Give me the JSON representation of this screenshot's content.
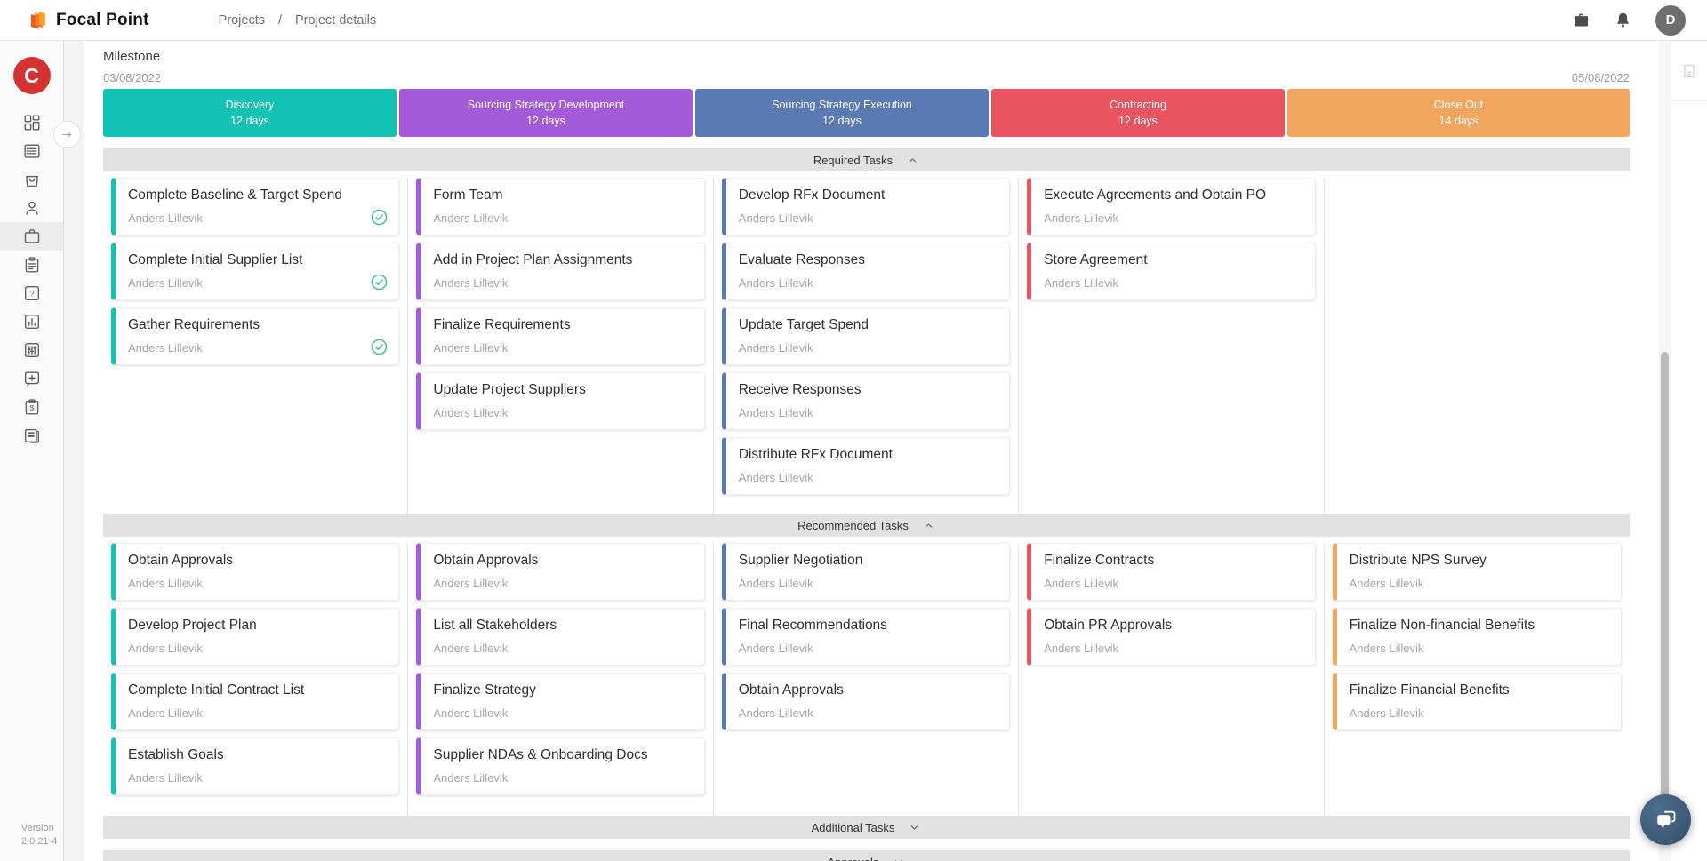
{
  "header": {
    "logo_text": "Focal Point",
    "breadcrumb": [
      "Projects",
      "Project details"
    ],
    "avatar_initial": "D"
  },
  "sidebar": {
    "logo_initial": "C",
    "items": [
      {
        "id": "dashboard",
        "icon": "dashboard-icon",
        "active": false
      },
      {
        "id": "task-list",
        "icon": "list-icon",
        "active": false
      },
      {
        "id": "sourcing",
        "icon": "shopping-bag-icon",
        "active": false
      },
      {
        "id": "contacts",
        "icon": "person-icon",
        "active": false
      },
      {
        "id": "projects",
        "icon": "briefcase-icon",
        "active": true
      },
      {
        "id": "notes",
        "icon": "clipboard-icon",
        "active": false
      },
      {
        "id": "help",
        "icon": "question-icon",
        "active": false
      },
      {
        "id": "analytics",
        "icon": "bar-chart-icon",
        "active": false
      },
      {
        "id": "filters",
        "icon": "sliders-icon",
        "active": false
      },
      {
        "id": "add-new",
        "icon": "add-square-icon",
        "active": false
      },
      {
        "id": "budget",
        "icon": "budget-clipboard-icon",
        "active": false
      },
      {
        "id": "documents",
        "icon": "documents-stack-icon",
        "active": false
      }
    ],
    "version_label": "Version",
    "version_value": "2.0.21-4"
  },
  "milestone": {
    "title": "Milestone",
    "start_date": "03/08/2022",
    "end_date": "05/08/2022",
    "phases": [
      {
        "name": "Discovery",
        "duration": "12 days",
        "days": 12,
        "color": "#12c3b3"
      },
      {
        "name": "Sourcing Strategy Development",
        "duration": "12 days",
        "days": 12,
        "color": "#a55bd9"
      },
      {
        "name": "Sourcing Strategy Execution",
        "duration": "12 days",
        "days": 12,
        "color": "#5b7ab4"
      },
      {
        "name": "Contracting",
        "duration": "12 days",
        "days": 12,
        "color": "#e95460"
      },
      {
        "name": "Close Out",
        "duration": "14 days",
        "days": 14,
        "color": "#f2a55e"
      }
    ]
  },
  "colors": {
    "check": "#4dbd8d"
  },
  "sections": [
    {
      "key": "required",
      "label": "Required Tasks",
      "expanded": true,
      "columns": [
        [
          {
            "title": "Complete Baseline & Target Spend",
            "assignee": "Anders Lillevik",
            "done": true
          },
          {
            "title": "Complete Initial Supplier List",
            "assignee": "Anders Lillevik",
            "done": true
          },
          {
            "title": "Gather Requirements",
            "assignee": "Anders Lillevik",
            "done": true
          }
        ],
        [
          {
            "title": "Form Team",
            "assignee": "Anders Lillevik",
            "done": false
          },
          {
            "title": "Add in Project Plan Assignments",
            "assignee": "Anders Lillevik",
            "done": false
          },
          {
            "title": "Finalize Requirements",
            "assignee": "Anders Lillevik",
            "done": false
          },
          {
            "title": "Update Project Suppliers",
            "assignee": "Anders Lillevik",
            "done": false
          }
        ],
        [
          {
            "title": "Develop RFx Document",
            "assignee": "Anders Lillevik",
            "done": false
          },
          {
            "title": "Evaluate Responses",
            "assignee": "Anders Lillevik",
            "done": false
          },
          {
            "title": "Update Target Spend",
            "assignee": "Anders Lillevik",
            "done": false
          },
          {
            "title": "Receive Responses",
            "assignee": "Anders Lillevik",
            "done": false
          },
          {
            "title": "Distribute RFx Document",
            "assignee": "Anders Lillevik",
            "done": false
          }
        ],
        [
          {
            "title": "Execute Agreements and Obtain PO",
            "assignee": "Anders Lillevik",
            "done": false
          },
          {
            "title": "Store Agreement",
            "assignee": "Anders Lillevik",
            "done": false
          }
        ],
        []
      ]
    },
    {
      "key": "recommended",
      "label": "Recommended Tasks",
      "expanded": true,
      "columns": [
        [
          {
            "title": "Obtain Approvals",
            "assignee": "Anders Lillevik",
            "done": false
          },
          {
            "title": "Develop Project Plan",
            "assignee": "Anders Lillevik",
            "done": false
          },
          {
            "title": "Complete Initial Contract List",
            "assignee": "Anders Lillevik",
            "done": false
          },
          {
            "title": "Establish Goals",
            "assignee": "Anders Lillevik",
            "done": false
          }
        ],
        [
          {
            "title": "Obtain Approvals",
            "assignee": "Anders Lillevik",
            "done": false
          },
          {
            "title": "List all Stakeholders",
            "assignee": "Anders Lillevik",
            "done": false
          },
          {
            "title": "Finalize Strategy",
            "assignee": "Anders Lillevik",
            "done": false
          },
          {
            "title": "Supplier NDAs & Onboarding Docs",
            "assignee": "Anders Lillevik",
            "done": false
          }
        ],
        [
          {
            "title": "Supplier Negotiation",
            "assignee": "Anders Lillevik",
            "done": false
          },
          {
            "title": "Final Recommendations",
            "assignee": "Anders Lillevik",
            "done": false
          },
          {
            "title": "Obtain Approvals",
            "assignee": "Anders Lillevik",
            "done": false
          }
        ],
        [
          {
            "title": "Finalize Contracts",
            "assignee": "Anders Lillevik",
            "done": false
          },
          {
            "title": "Obtain PR Approvals",
            "assignee": "Anders Lillevik",
            "done": false
          }
        ],
        [
          {
            "title": "Distribute NPS Survey",
            "assignee": "Anders Lillevik",
            "done": false
          },
          {
            "title": "Finalize Non-financial Benefits",
            "assignee": "Anders Lillevik",
            "done": false
          },
          {
            "title": "Finalize Financial Benefits",
            "assignee": "Anders Lillevik",
            "done": false
          }
        ]
      ]
    },
    {
      "key": "additional",
      "label": "Additional Tasks",
      "expanded": false
    },
    {
      "key": "approvals",
      "label": "Approvals",
      "expanded": false
    }
  ]
}
